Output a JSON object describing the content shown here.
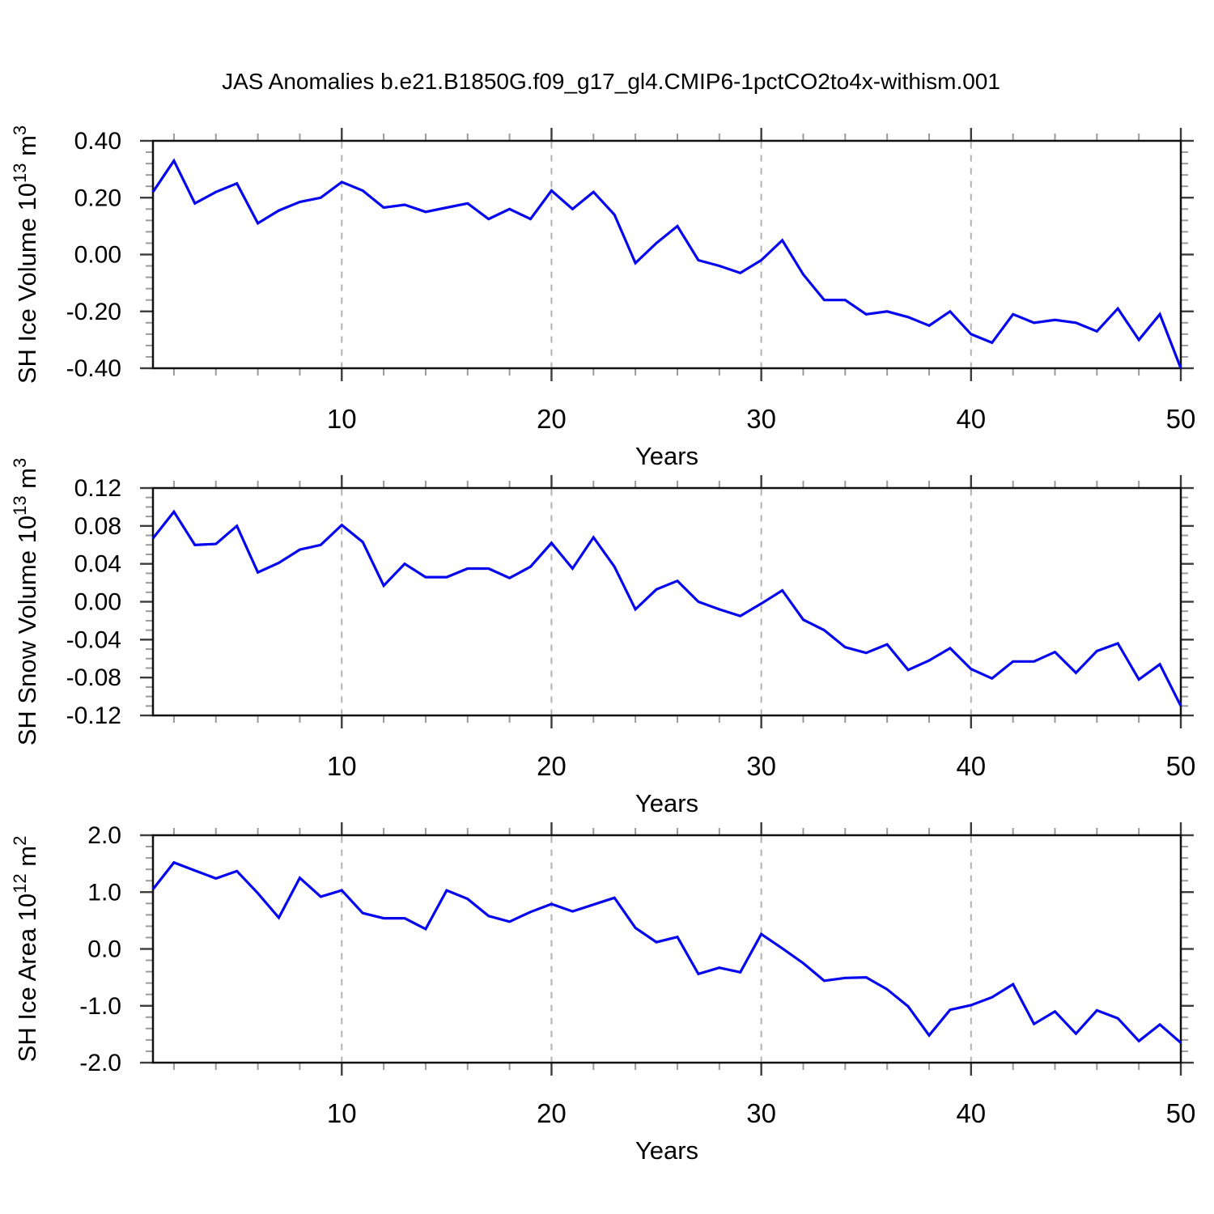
{
  "title": "JAS Anomalies b.e21.B1850G.f09_g17_gl4.CMIP6-1pctCO2to4x-withism.001",
  "style": {
    "line_color": "#0404ee",
    "axis_color": "#111111",
    "major_tick_color": "#3c3c3c",
    "minor_tick_color": "#9a9a9a",
    "grid_color": "#b2b2b2",
    "text_color": "#000000",
    "background": "#ffffff"
  },
  "chart_data": [
    {
      "type": "line",
      "name": "sh-ice-volume",
      "ylabel": "SH Ice Volume 10¹³ m³",
      "ylabel_segments": [
        [
          "SH Ice Volume 10",
          false
        ],
        [
          "13",
          true
        ],
        [
          " m",
          false
        ],
        [
          "3",
          true
        ]
      ],
      "xlabel": "Years",
      "xlim": [
        1,
        50
      ],
      "ylim": [
        -0.4,
        0.4
      ],
      "ytick_labels": [
        "0.40",
        "0.20",
        "0.00",
        "-0.20",
        "-0.40"
      ],
      "ytick_values": [
        0.4,
        0.2,
        0.0,
        -0.2,
        -0.4
      ],
      "ytick_major_step": 0.2,
      "ytick_minor_step": 0.04,
      "xticks": [
        10,
        20,
        30,
        40,
        50
      ],
      "xtick_minor_step": 2,
      "grid_x": [
        10,
        20,
        30,
        40
      ],
      "years": {
        "start": 1,
        "end": 50,
        "step": 1
      },
      "values": [
        0.22,
        0.33,
        0.18,
        0.22,
        0.25,
        0.11,
        0.155,
        0.185,
        0.2,
        0.255,
        0.225,
        0.165,
        0.175,
        0.15,
        0.165,
        0.18,
        0.125,
        0.16,
        0.125,
        0.225,
        0.16,
        0.22,
        0.14,
        -0.03,
        0.04,
        0.1,
        -0.02,
        -0.04,
        -0.065,
        -0.02,
        0.05,
        -0.07,
        -0.16,
        -0.16,
        -0.21,
        -0.2,
        -0.22,
        -0.25,
        -0.2,
        -0.28,
        -0.31,
        -0.21,
        -0.24,
        -0.23,
        -0.24,
        -0.27,
        -0.19,
        -0.3,
        -0.21,
        -0.4
      ]
    },
    {
      "type": "line",
      "name": "sh-snow-volume",
      "ylabel": "SH Snow Volume 10¹³ m³",
      "ylabel_segments": [
        [
          "SH Snow Volume 10",
          false
        ],
        [
          "13",
          true
        ],
        [
          " m",
          false
        ],
        [
          "3",
          true
        ]
      ],
      "xlabel": "Years",
      "xlim": [
        1,
        50
      ],
      "ylim": [
        -0.12,
        0.12
      ],
      "ytick_labels": [
        "0.12",
        "0.08",
        "0.04",
        "0.00",
        "-0.04",
        "-0.08",
        "-0.12"
      ],
      "ytick_values": [
        0.12,
        0.08,
        0.04,
        0.0,
        -0.04,
        -0.08,
        -0.12
      ],
      "ytick_major_step": 0.04,
      "ytick_minor_step": 0.01,
      "xticks": [
        10,
        20,
        30,
        40,
        50
      ],
      "xtick_minor_step": 2,
      "grid_x": [
        10,
        20,
        30,
        40
      ],
      "years": {
        "start": 1,
        "end": 50,
        "step": 1
      },
      "values": [
        0.067,
        0.095,
        0.06,
        0.061,
        0.08,
        0.031,
        0.041,
        0.055,
        0.06,
        0.081,
        0.063,
        0.017,
        0.04,
        0.026,
        0.026,
        0.035,
        0.035,
        0.025,
        0.037,
        0.062,
        0.035,
        0.068,
        0.037,
        -0.008,
        0.013,
        0.022,
        0.0,
        -0.008,
        -0.015,
        -0.002,
        0.012,
        -0.019,
        -0.03,
        -0.048,
        -0.054,
        -0.045,
        -0.072,
        -0.062,
        -0.049,
        -0.071,
        -0.081,
        -0.063,
        -0.063,
        -0.053,
        -0.075,
        -0.052,
        -0.044,
        -0.082,
        -0.066,
        -0.11
      ]
    },
    {
      "type": "line",
      "name": "sh-ice-area",
      "ylabel": "SH Ice Area 10¹² m²",
      "ylabel_segments": [
        [
          "SH Ice Area 10",
          false
        ],
        [
          "12",
          true
        ],
        [
          " m",
          false
        ],
        [
          "2",
          true
        ]
      ],
      "xlabel": "Years",
      "xlim": [
        1,
        50
      ],
      "ylim": [
        -2.0,
        2.0
      ],
      "ytick_labels": [
        "2.0",
        "1.0",
        "0.0",
        "-1.0",
        "-2.0"
      ],
      "ytick_values": [
        2.0,
        1.0,
        0.0,
        -1.0,
        -2.0
      ],
      "ytick_major_step": 1.0,
      "ytick_minor_step": 0.2,
      "xticks": [
        10,
        20,
        30,
        40,
        50
      ],
      "xtick_minor_step": 2,
      "grid_x": [
        10,
        20,
        30,
        40
      ],
      "years": {
        "start": 1,
        "end": 50,
        "step": 1
      },
      "values": [
        1.05,
        1.52,
        1.38,
        1.24,
        1.37,
        0.98,
        0.55,
        1.25,
        0.92,
        1.03,
        0.63,
        0.54,
        0.54,
        0.35,
        1.03,
        0.88,
        0.58,
        0.48,
        0.65,
        0.79,
        0.66,
        0.78,
        0.9,
        0.37,
        0.12,
        0.21,
        -0.44,
        -0.33,
        -0.41,
        0.26,
        0.01,
        -0.25,
        -0.56,
        -0.51,
        -0.5,
        -0.71,
        -1.01,
        -1.52,
        -1.07,
        -0.99,
        -0.85,
        -0.62,
        -1.32,
        -1.1,
        -1.49,
        -1.08,
        -1.22,
        -1.62,
        -1.33,
        -1.65
      ]
    }
  ]
}
